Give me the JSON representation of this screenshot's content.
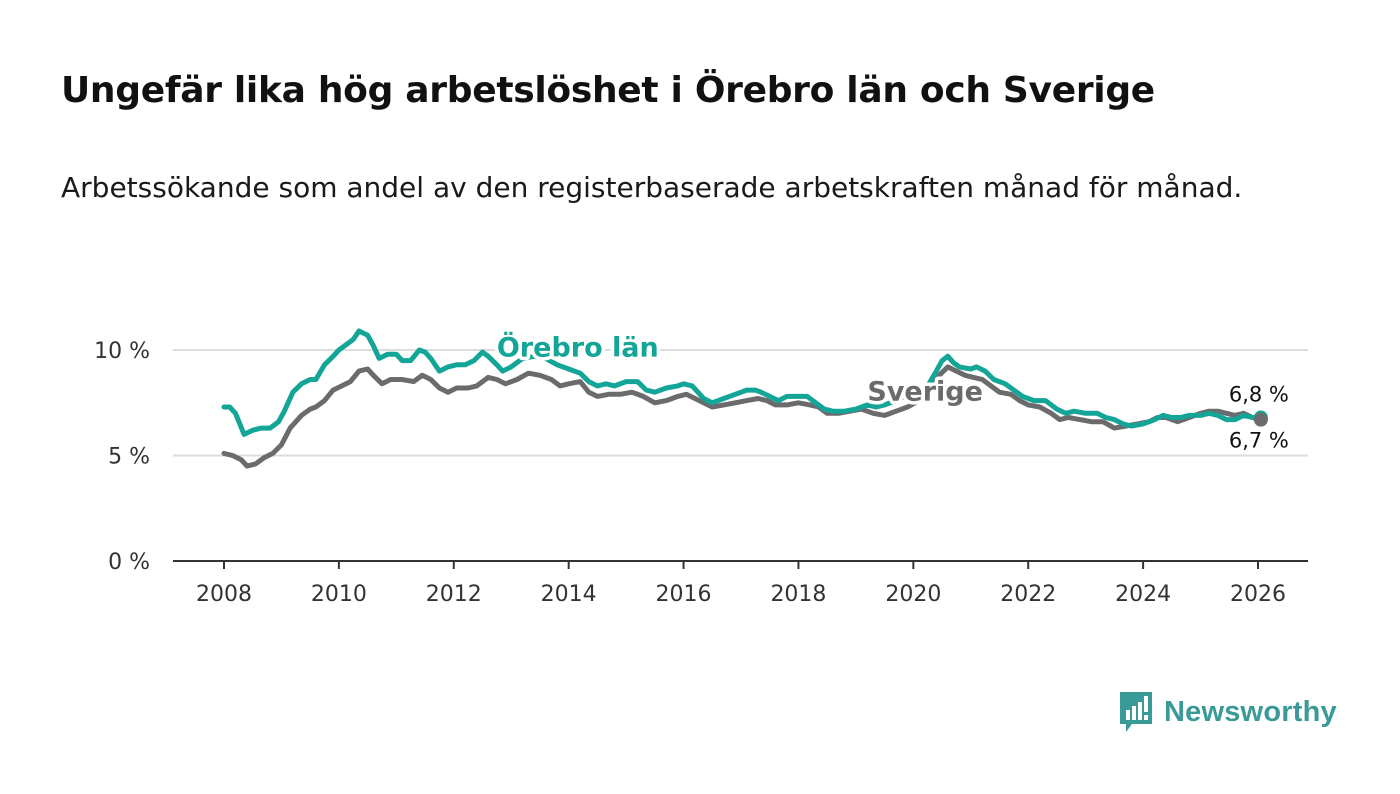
{
  "header": {
    "title": "Ungefär lika hög arbetslöshet i Örebro län och Sverige",
    "subtitle": "Arbetssökande som andel av den registerbaserade arbetskraften månad för månad."
  },
  "brand": {
    "name": "Newsworthy",
    "color": "#3a9a98",
    "icon": "bar-chart-speech-bubble-icon"
  },
  "chart_data": {
    "type": "line",
    "title": "Ungefär lika hög arbetslöshet i Örebro län och Sverige",
    "subtitle": "Arbetssökande som andel av den registerbaserade arbetskraften månad för månad.",
    "xlabel": "",
    "ylabel": "",
    "xlim": [
      2007.5,
      2026.9
    ],
    "ylim": [
      0,
      10
    ],
    "x_ticks": [
      2008,
      2010,
      2012,
      2014,
      2016,
      2018,
      2020,
      2022,
      2024,
      2026
    ],
    "x_tick_labels": [
      "2008",
      "2010",
      "2012",
      "2014",
      "2016",
      "2018",
      "2020",
      "2022",
      "2024",
      "2026"
    ],
    "y_ticks": [
      0,
      5,
      10
    ],
    "y_tick_labels": [
      "0 %",
      "5 %",
      "10 %"
    ],
    "grid": true,
    "series": [
      {
        "name": "Örebro län",
        "color": "#13a597",
        "label_at": [
          2012.75,
          9.7
        ],
        "end_label": "6,8 %",
        "points": [
          [
            2008.0,
            7.3
          ],
          [
            2008.1,
            7.3
          ],
          [
            2008.2,
            7.0
          ],
          [
            2008.35,
            6.0
          ],
          [
            2008.5,
            6.2
          ],
          [
            2008.65,
            6.3
          ],
          [
            2008.8,
            6.3
          ],
          [
            2008.95,
            6.6
          ],
          [
            2009.05,
            7.1
          ],
          [
            2009.2,
            8.0
          ],
          [
            2009.35,
            8.4
          ],
          [
            2009.5,
            8.6
          ],
          [
            2009.6,
            8.6
          ],
          [
            2009.75,
            9.3
          ],
          [
            2009.9,
            9.7
          ],
          [
            2010.0,
            10.0
          ],
          [
            2010.15,
            10.3
          ],
          [
            2010.25,
            10.5
          ],
          [
            2010.35,
            10.9
          ],
          [
            2010.5,
            10.7
          ],
          [
            2010.6,
            10.2
          ],
          [
            2010.7,
            9.6
          ],
          [
            2010.85,
            9.8
          ],
          [
            2011.0,
            9.8
          ],
          [
            2011.1,
            9.5
          ],
          [
            2011.25,
            9.5
          ],
          [
            2011.4,
            10.0
          ],
          [
            2011.5,
            9.9
          ],
          [
            2011.6,
            9.6
          ],
          [
            2011.75,
            9.0
          ],
          [
            2011.9,
            9.2
          ],
          [
            2012.05,
            9.3
          ],
          [
            2012.2,
            9.3
          ],
          [
            2012.35,
            9.5
          ],
          [
            2012.5,
            9.9
          ],
          [
            2012.6,
            9.7
          ],
          [
            2012.75,
            9.3
          ],
          [
            2012.85,
            9.0
          ],
          [
            2013.0,
            9.2
          ],
          [
            2013.2,
            9.6
          ],
          [
            2013.4,
            9.7
          ],
          [
            2013.6,
            9.6
          ],
          [
            2013.8,
            9.3
          ],
          [
            2014.0,
            9.1
          ],
          [
            2014.2,
            8.9
          ],
          [
            2014.35,
            8.5
          ],
          [
            2014.5,
            8.3
          ],
          [
            2014.65,
            8.4
          ],
          [
            2014.8,
            8.3
          ],
          [
            2015.0,
            8.5
          ],
          [
            2015.2,
            8.5
          ],
          [
            2015.35,
            8.1
          ],
          [
            2015.5,
            8.0
          ],
          [
            2015.7,
            8.2
          ],
          [
            2015.9,
            8.3
          ],
          [
            2016.0,
            8.4
          ],
          [
            2016.15,
            8.3
          ],
          [
            2016.35,
            7.7
          ],
          [
            2016.5,
            7.5
          ],
          [
            2016.7,
            7.7
          ],
          [
            2016.9,
            7.9
          ],
          [
            2017.1,
            8.1
          ],
          [
            2017.25,
            8.1
          ],
          [
            2017.35,
            8.0
          ],
          [
            2017.5,
            7.8
          ],
          [
            2017.65,
            7.6
          ],
          [
            2017.8,
            7.8
          ],
          [
            2018.0,
            7.8
          ],
          [
            2018.15,
            7.8
          ],
          [
            2018.3,
            7.5
          ],
          [
            2018.45,
            7.2
          ],
          [
            2018.6,
            7.1
          ],
          [
            2018.8,
            7.1
          ],
          [
            2019.0,
            7.2
          ],
          [
            2019.2,
            7.4
          ],
          [
            2019.35,
            7.3
          ],
          [
            2019.5,
            7.4
          ],
          [
            2019.7,
            7.6
          ],
          [
            2019.9,
            7.9
          ],
          [
            2020.1,
            8.0
          ],
          [
            2020.25,
            8.3
          ],
          [
            2020.4,
            9.0
          ],
          [
            2020.5,
            9.5
          ],
          [
            2020.6,
            9.7
          ],
          [
            2020.7,
            9.4
          ],
          [
            2020.8,
            9.2
          ],
          [
            2021.0,
            9.1
          ],
          [
            2021.1,
            9.2
          ],
          [
            2021.25,
            9.0
          ],
          [
            2021.4,
            8.6
          ],
          [
            2021.6,
            8.4
          ],
          [
            2021.75,
            8.1
          ],
          [
            2021.9,
            7.8
          ],
          [
            2022.1,
            7.6
          ],
          [
            2022.3,
            7.6
          ],
          [
            2022.5,
            7.2
          ],
          [
            2022.65,
            7.0
          ],
          [
            2022.8,
            7.1
          ],
          [
            2023.0,
            7.0
          ],
          [
            2023.2,
            7.0
          ],
          [
            2023.35,
            6.8
          ],
          [
            2023.5,
            6.7
          ],
          [
            2023.65,
            6.5
          ],
          [
            2023.8,
            6.4
          ],
          [
            2024.0,
            6.5
          ],
          [
            2024.2,
            6.7
          ],
          [
            2024.35,
            6.9
          ],
          [
            2024.5,
            6.8
          ],
          [
            2024.65,
            6.8
          ],
          [
            2024.8,
            6.9
          ],
          [
            2025.0,
            6.9
          ],
          [
            2025.15,
            7.0
          ],
          [
            2025.3,
            6.9
          ],
          [
            2025.45,
            6.7
          ],
          [
            2025.6,
            6.7
          ],
          [
            2025.75,
            6.9
          ],
          [
            2025.9,
            6.8
          ],
          [
            2026.05,
            6.8
          ]
        ]
      },
      {
        "name": "Sverige",
        "color": "#6b6b6e",
        "label_at": [
          2019.2,
          7.6
        ],
        "end_label": "6,7 %",
        "points": [
          [
            2008.0,
            5.1
          ],
          [
            2008.15,
            5.0
          ],
          [
            2008.3,
            4.8
          ],
          [
            2008.4,
            4.5
          ],
          [
            2008.55,
            4.6
          ],
          [
            2008.7,
            4.9
          ],
          [
            2008.85,
            5.1
          ],
          [
            2009.0,
            5.5
          ],
          [
            2009.15,
            6.3
          ],
          [
            2009.35,
            6.9
          ],
          [
            2009.5,
            7.2
          ],
          [
            2009.6,
            7.3
          ],
          [
            2009.75,
            7.6
          ],
          [
            2009.9,
            8.1
          ],
          [
            2010.05,
            8.3
          ],
          [
            2010.2,
            8.5
          ],
          [
            2010.35,
            9.0
          ],
          [
            2010.5,
            9.1
          ],
          [
            2010.6,
            8.8
          ],
          [
            2010.75,
            8.4
          ],
          [
            2010.9,
            8.6
          ],
          [
            2011.1,
            8.6
          ],
          [
            2011.3,
            8.5
          ],
          [
            2011.45,
            8.8
          ],
          [
            2011.6,
            8.6
          ],
          [
            2011.75,
            8.2
          ],
          [
            2011.9,
            8.0
          ],
          [
            2012.05,
            8.2
          ],
          [
            2012.25,
            8.2
          ],
          [
            2012.4,
            8.3
          ],
          [
            2012.6,
            8.7
          ],
          [
            2012.75,
            8.6
          ],
          [
            2012.9,
            8.4
          ],
          [
            2013.1,
            8.6
          ],
          [
            2013.3,
            8.9
          ],
          [
            2013.5,
            8.8
          ],
          [
            2013.7,
            8.6
          ],
          [
            2013.85,
            8.3
          ],
          [
            2014.0,
            8.4
          ],
          [
            2014.2,
            8.5
          ],
          [
            2014.35,
            8.0
          ],
          [
            2014.5,
            7.8
          ],
          [
            2014.7,
            7.9
          ],
          [
            2014.9,
            7.9
          ],
          [
            2015.1,
            8.0
          ],
          [
            2015.3,
            7.8
          ],
          [
            2015.5,
            7.5
          ],
          [
            2015.7,
            7.6
          ],
          [
            2015.9,
            7.8
          ],
          [
            2016.05,
            7.9
          ],
          [
            2016.2,
            7.7
          ],
          [
            2016.35,
            7.5
          ],
          [
            2016.5,
            7.3
          ],
          [
            2016.7,
            7.4
          ],
          [
            2016.9,
            7.5
          ],
          [
            2017.1,
            7.6
          ],
          [
            2017.3,
            7.7
          ],
          [
            2017.45,
            7.6
          ],
          [
            2017.6,
            7.4
          ],
          [
            2017.8,
            7.4
          ],
          [
            2018.0,
            7.5
          ],
          [
            2018.2,
            7.4
          ],
          [
            2018.35,
            7.3
          ],
          [
            2018.5,
            7.0
          ],
          [
            2018.7,
            7.0
          ],
          [
            2018.9,
            7.1
          ],
          [
            2019.1,
            7.2
          ],
          [
            2019.3,
            7.0
          ],
          [
            2019.5,
            6.9
          ],
          [
            2019.7,
            7.1
          ],
          [
            2019.9,
            7.3
          ],
          [
            2020.1,
            7.6
          ],
          [
            2020.3,
            8.2
          ],
          [
            2020.45,
            8.8
          ],
          [
            2020.6,
            9.2
          ],
          [
            2020.75,
            9.0
          ],
          [
            2020.9,
            8.8
          ],
          [
            2021.05,
            8.7
          ],
          [
            2021.2,
            8.6
          ],
          [
            2021.35,
            8.3
          ],
          [
            2021.5,
            8.0
          ],
          [
            2021.7,
            7.9
          ],
          [
            2021.85,
            7.6
          ],
          [
            2022.0,
            7.4
          ],
          [
            2022.2,
            7.3
          ],
          [
            2022.4,
            7.0
          ],
          [
            2022.55,
            6.7
          ],
          [
            2022.7,
            6.8
          ],
          [
            2022.9,
            6.7
          ],
          [
            2023.1,
            6.6
          ],
          [
            2023.3,
            6.6
          ],
          [
            2023.5,
            6.3
          ],
          [
            2023.7,
            6.4
          ],
          [
            2023.9,
            6.5
          ],
          [
            2024.1,
            6.6
          ],
          [
            2024.25,
            6.8
          ],
          [
            2024.4,
            6.8
          ],
          [
            2024.6,
            6.6
          ],
          [
            2024.8,
            6.8
          ],
          [
            2025.0,
            7.0
          ],
          [
            2025.15,
            7.1
          ],
          [
            2025.3,
            7.1
          ],
          [
            2025.45,
            7.0
          ],
          [
            2025.6,
            6.9
          ],
          [
            2025.75,
            7.0
          ],
          [
            2025.9,
            6.8
          ],
          [
            2026.05,
            6.7
          ]
        ]
      }
    ]
  }
}
